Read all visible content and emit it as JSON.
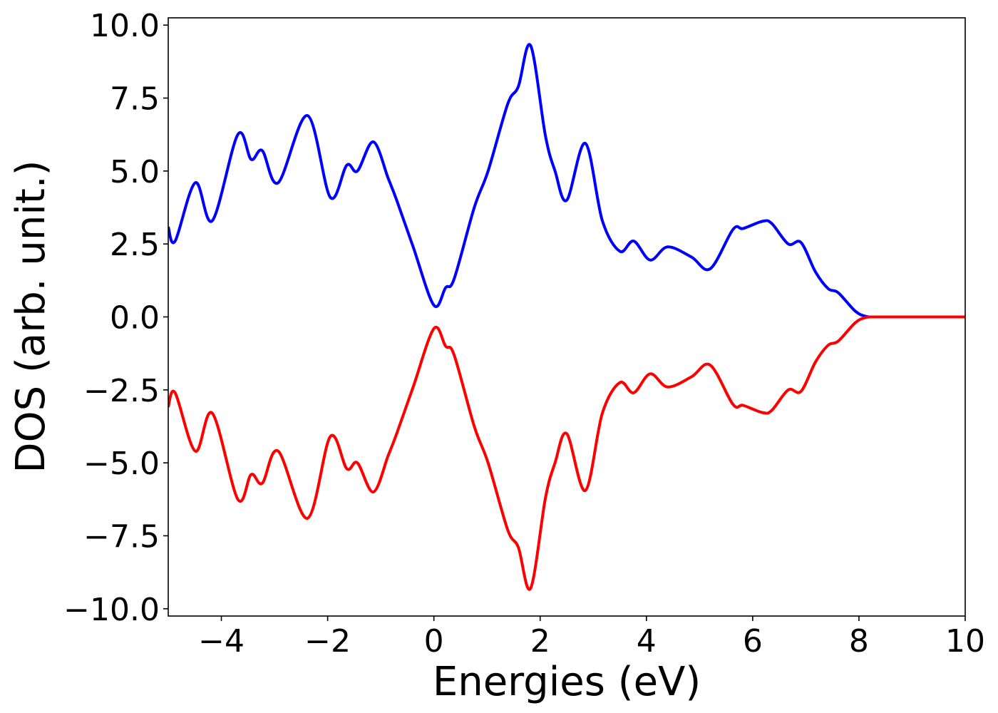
{
  "chart_data": {
    "type": "line",
    "xlabel": "Energies (eV)",
    "ylabel": "DOS (arb. unit.)",
    "x": [
      -5,
      -4.87,
      -4.49,
      -4.17,
      -3.69,
      -3.44,
      -3.23,
      -2.93,
      -2.38,
      -1.95,
      -1.64,
      -1.44,
      -1.14,
      -0.86,
      -0.7,
      -0.39,
      0,
      0.22,
      0.38,
      0.76,
      1.02,
      1.39,
      1.59,
      1.82,
      2.1,
      2.28,
      2.5,
      2.85,
      3.17,
      3.5,
      3.76,
      4.07,
      4.4,
      4.85,
      5.2,
      5.63,
      5.82,
      6.19,
      6.36,
      6.67,
      6.91,
      7.18,
      7.42,
      7.61,
      7.93,
      8.13,
      8.3,
      9,
      10
    ],
    "series": [
      {
        "color": "#0000ff",
        "values": [
          3.08,
          2.6,
          4.6,
          3.3,
          6.25,
          5.4,
          5.7,
          4.6,
          6.9,
          4.1,
          5.2,
          5.0,
          6.0,
          4.75,
          4.0,
          2.4,
          0.4,
          1.0,
          1.3,
          3.75,
          5.0,
          7.3,
          7.9,
          9.3,
          6.2,
          5.0,
          4.0,
          5.95,
          3.3,
          2.25,
          2.6,
          1.95,
          2.4,
          2.05,
          1.65,
          3.0,
          3.03,
          3.28,
          3.2,
          2.5,
          2.55,
          1.55,
          0.97,
          0.83,
          0.2,
          0.02,
          0,
          0,
          0
        ]
      },
      {
        "color": "#ff0000",
        "values": [
          -3.08,
          -2.6,
          -4.6,
          -3.3,
          -6.25,
          -5.4,
          -5.7,
          -4.6,
          -6.9,
          -4.1,
          -5.2,
          -5.0,
          -6.0,
          -4.75,
          -4.0,
          -2.4,
          -0.4,
          -1.0,
          -1.3,
          -3.75,
          -5.0,
          -7.3,
          -7.9,
          -9.3,
          -6.2,
          -5.0,
          -4.0,
          -5.95,
          -3.3,
          -2.25,
          -2.6,
          -1.95,
          -2.4,
          -2.05,
          -1.65,
          -3.0,
          -3.03,
          -3.28,
          -3.2,
          -2.5,
          -2.55,
          -1.55,
          -0.97,
          -0.83,
          -0.2,
          -0.02,
          0,
          0,
          0
        ]
      }
    ],
    "xlim": [
      -5,
      10
    ],
    "xticks": [
      {
        "value": -4,
        "label": "−4"
      },
      {
        "value": -2,
        "label": "−2"
      },
      0,
      2,
      4,
      6,
      8,
      10
    ],
    "ylim": [
      -10.25,
      10.25
    ],
    "yticks": [
      {
        "value": -10,
        "label": "−10.0"
      },
      {
        "value": -7.5,
        "label": "−7.5"
      },
      {
        "value": -5,
        "label": "−5.0"
      },
      {
        "value": -2.5,
        "label": "−2.5"
      },
      {
        "value": 0,
        "label": "0.0"
      },
      2.5,
      {
        "value": 5,
        "label": "5.0"
      },
      7.5,
      {
        "value": 10,
        "label": "10.0"
      }
    ]
  }
}
